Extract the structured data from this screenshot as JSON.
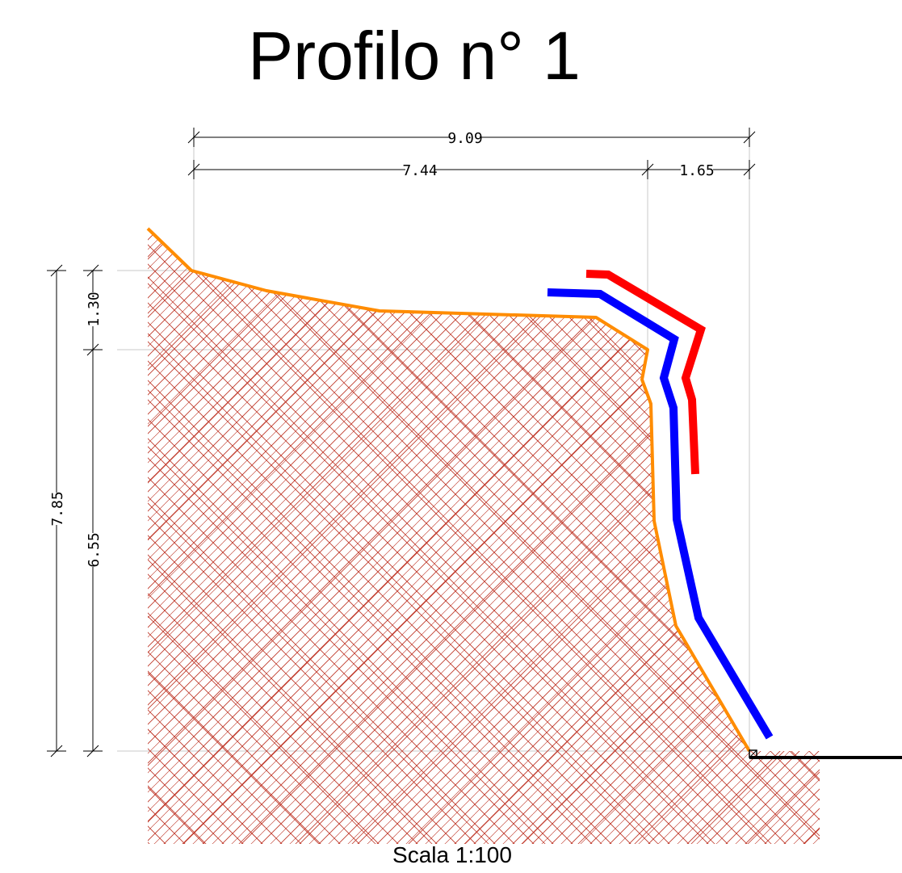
{
  "title": "Profilo n° 1",
  "scale_label": "Scala 1:100",
  "dimensions": {
    "total_width": "9.09",
    "width_a": "7.44",
    "width_b": "1.65",
    "total_height": "7.85",
    "height_top": "1.30",
    "height_main": "6.55"
  },
  "colors": {
    "terrain_profile": "#ff8c00",
    "hatch": "#c0392b",
    "blue_line": "#0000ff",
    "red_line": "#ff0000",
    "dimension_lines": "#000000",
    "guides": "#c8c8c8"
  }
}
